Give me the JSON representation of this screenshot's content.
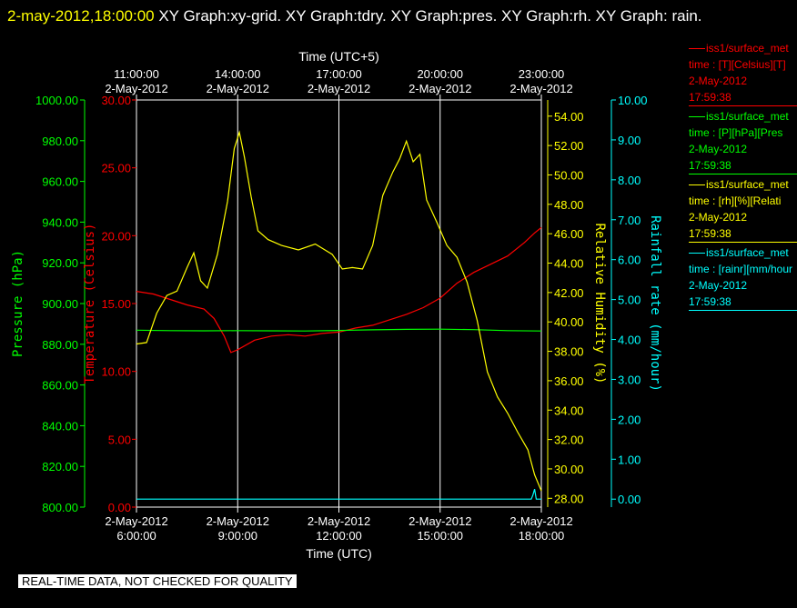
{
  "header": {
    "timestamp": "2-may-2012,18:00:00",
    "title": "XY Graph:xy-grid.  XY Graph:tdry.  XY Graph:pres.  XY Graph:rh.  XY Graph: rain."
  },
  "disclaimer": "REAL-TIME DATA, NOT CHECKED FOR QUALITY",
  "legend": [
    {
      "color": "#ff0000",
      "name": "iss1/surface_met",
      "units": "time : [T][Celsius][T]",
      "date": "2-May-2012",
      "time": "17:59:38"
    },
    {
      "color": "#00ff00",
      "name": "iss1/surface_met",
      "units": "time : [P][hPa][Pres",
      "date": "2-May-2012",
      "time": "17:59:38"
    },
    {
      "color": "#ffff00",
      "name": "iss1/surface_met",
      "units": "time : [rh][%][Relati",
      "date": "2-May-2012",
      "time": "17:59:38"
    },
    {
      "color": "#00ffff",
      "name": "iss1/surface_met",
      "units": "time : [rainr][mm/hour",
      "date": "2-May-2012",
      "time": "17:59:38"
    }
  ],
  "chart_data": {
    "type": "line",
    "title": "",
    "x_bottom": {
      "label": "Time (UTC)",
      "range_hours": [
        6,
        18
      ],
      "ticks": [
        {
          "hour": 6,
          "date": "2-May-2012",
          "time": "6:00:00"
        },
        {
          "hour": 9,
          "date": "2-May-2012",
          "time": "9:00:00"
        },
        {
          "hour": 12,
          "date": "2-May-2012",
          "time": "12:00:00"
        },
        {
          "hour": 15,
          "date": "2-May-2012",
          "time": "15:00:00"
        },
        {
          "hour": 18,
          "date": "2-May-2012",
          "time": "18:00:00"
        }
      ]
    },
    "x_top": {
      "label": "Time (UTC+5)",
      "ticks": [
        {
          "hour": 6,
          "date": "2-May-2012",
          "time": "11:00:00"
        },
        {
          "hour": 9,
          "date": "2-May-2012",
          "time": "14:00:00"
        },
        {
          "hour": 12,
          "date": "2-May-2012",
          "time": "17:00:00"
        },
        {
          "hour": 15,
          "date": "2-May-2012",
          "time": "20:00:00"
        },
        {
          "hour": 18,
          "date": "2-May-2012",
          "time": "23:00:00"
        }
      ]
    },
    "grid": "vertical",
    "axes": [
      {
        "id": "pres",
        "label": "Pressure (hPa)",
        "color": "#00ff00",
        "range": [
          800,
          1000
        ],
        "ticks": [
          "800.00",
          "820.00",
          "840.00",
          "860.00",
          "880.00",
          "900.00",
          "920.00",
          "940.00",
          "960.00",
          "980.00",
          "1000.00"
        ]
      },
      {
        "id": "tdry",
        "label": "Temperature (Celsius)",
        "color": "#ff0000",
        "range": [
          0,
          30
        ],
        "ticks": [
          "0.00",
          "5.00",
          "10.00",
          "15.00",
          "20.00",
          "25.00",
          "30.00"
        ]
      },
      {
        "id": "rh",
        "label": "Relative Humidity (%)",
        "color": "#ffff00",
        "range": [
          27.4,
          55.1
        ],
        "ticks": [
          "28.00",
          "30.00",
          "32.00",
          "34.00",
          "36.00",
          "38.00",
          "40.00",
          "42.00",
          "44.00",
          "46.00",
          "48.00",
          "50.00",
          "52.00",
          "54.00"
        ]
      },
      {
        "id": "rain",
        "label": "Rainfall rate (mm/hour)",
        "color": "#00ffff",
        "range": [
          -0.2,
          10
        ],
        "ticks": [
          "0.00",
          "1.00",
          "2.00",
          "3.00",
          "4.00",
          "5.00",
          "6.00",
          "7.00",
          "8.00",
          "9.00",
          "10.00"
        ]
      }
    ],
    "series": [
      {
        "axis": "tdry",
        "color": "#ff0000",
        "x": [
          6,
          6.5,
          7,
          7.5,
          8,
          8.3,
          8.6,
          8.8,
          9,
          9.5,
          10,
          10.5,
          11,
          11.5,
          12,
          12.5,
          13,
          13.5,
          14,
          14.5,
          15,
          15.5,
          16,
          16.5,
          17,
          17.5,
          17.8,
          18
        ],
        "y": [
          15.9,
          15.7,
          15.3,
          14.9,
          14.6,
          13.9,
          12.6,
          11.4,
          11.6,
          12.3,
          12.6,
          12.7,
          12.6,
          12.8,
          12.9,
          13.2,
          13.4,
          13.8,
          14.2,
          14.7,
          15.4,
          16.5,
          17.3,
          17.9,
          18.5,
          19.5,
          20.2,
          20.6
        ]
      },
      {
        "axis": "pres",
        "color": "#00ff00",
        "x": [
          6,
          7,
          8,
          9,
          10,
          11,
          12,
          13,
          14,
          15,
          16,
          17,
          18
        ],
        "y": [
          886.9,
          886.7,
          886.6,
          886.7,
          886.6,
          886.5,
          886.8,
          887.1,
          887.3,
          887.4,
          887.2,
          886.7,
          886.5
        ]
      },
      {
        "axis": "rh",
        "color": "#ffff00",
        "x": [
          6,
          6.3,
          6.6,
          6.9,
          7.2,
          7.5,
          7.7,
          7.9,
          8.1,
          8.4,
          8.7,
          8.9,
          9.05,
          9.2,
          9.4,
          9.6,
          9.9,
          10.3,
          10.8,
          11.3,
          11.8,
          12.1,
          12.4,
          12.7,
          13,
          13.3,
          13.6,
          13.8,
          14,
          14.2,
          14.4,
          14.6,
          14.9,
          15.2,
          15.5,
          15.8,
          16.1,
          16.4,
          16.7,
          17,
          17.3,
          17.6,
          17.8,
          18
        ],
        "y": [
          38.5,
          38.6,
          40.6,
          41.8,
          42.1,
          43.7,
          44.7,
          42.8,
          42.3,
          44.6,
          48.2,
          51.8,
          52.9,
          51.2,
          48.5,
          46.2,
          45.6,
          45.2,
          44.9,
          45.3,
          44.6,
          43.6,
          43.7,
          43.6,
          45.2,
          48.6,
          50.2,
          51.1,
          52.3,
          50.9,
          51.4,
          48.3,
          46.8,
          45.2,
          44.4,
          42.7,
          40.1,
          36.6,
          34.9,
          33.8,
          32.5,
          31.3,
          29.6,
          28.5
        ]
      },
      {
        "axis": "rain",
        "color": "#00ffff",
        "x": [
          6,
          9,
          12,
          15,
          17.7,
          17.75,
          17.8,
          17.85,
          17.9,
          18
        ],
        "y": [
          0,
          0,
          0,
          0,
          0,
          0.1,
          0.25,
          0,
          0,
          0
        ]
      }
    ]
  }
}
